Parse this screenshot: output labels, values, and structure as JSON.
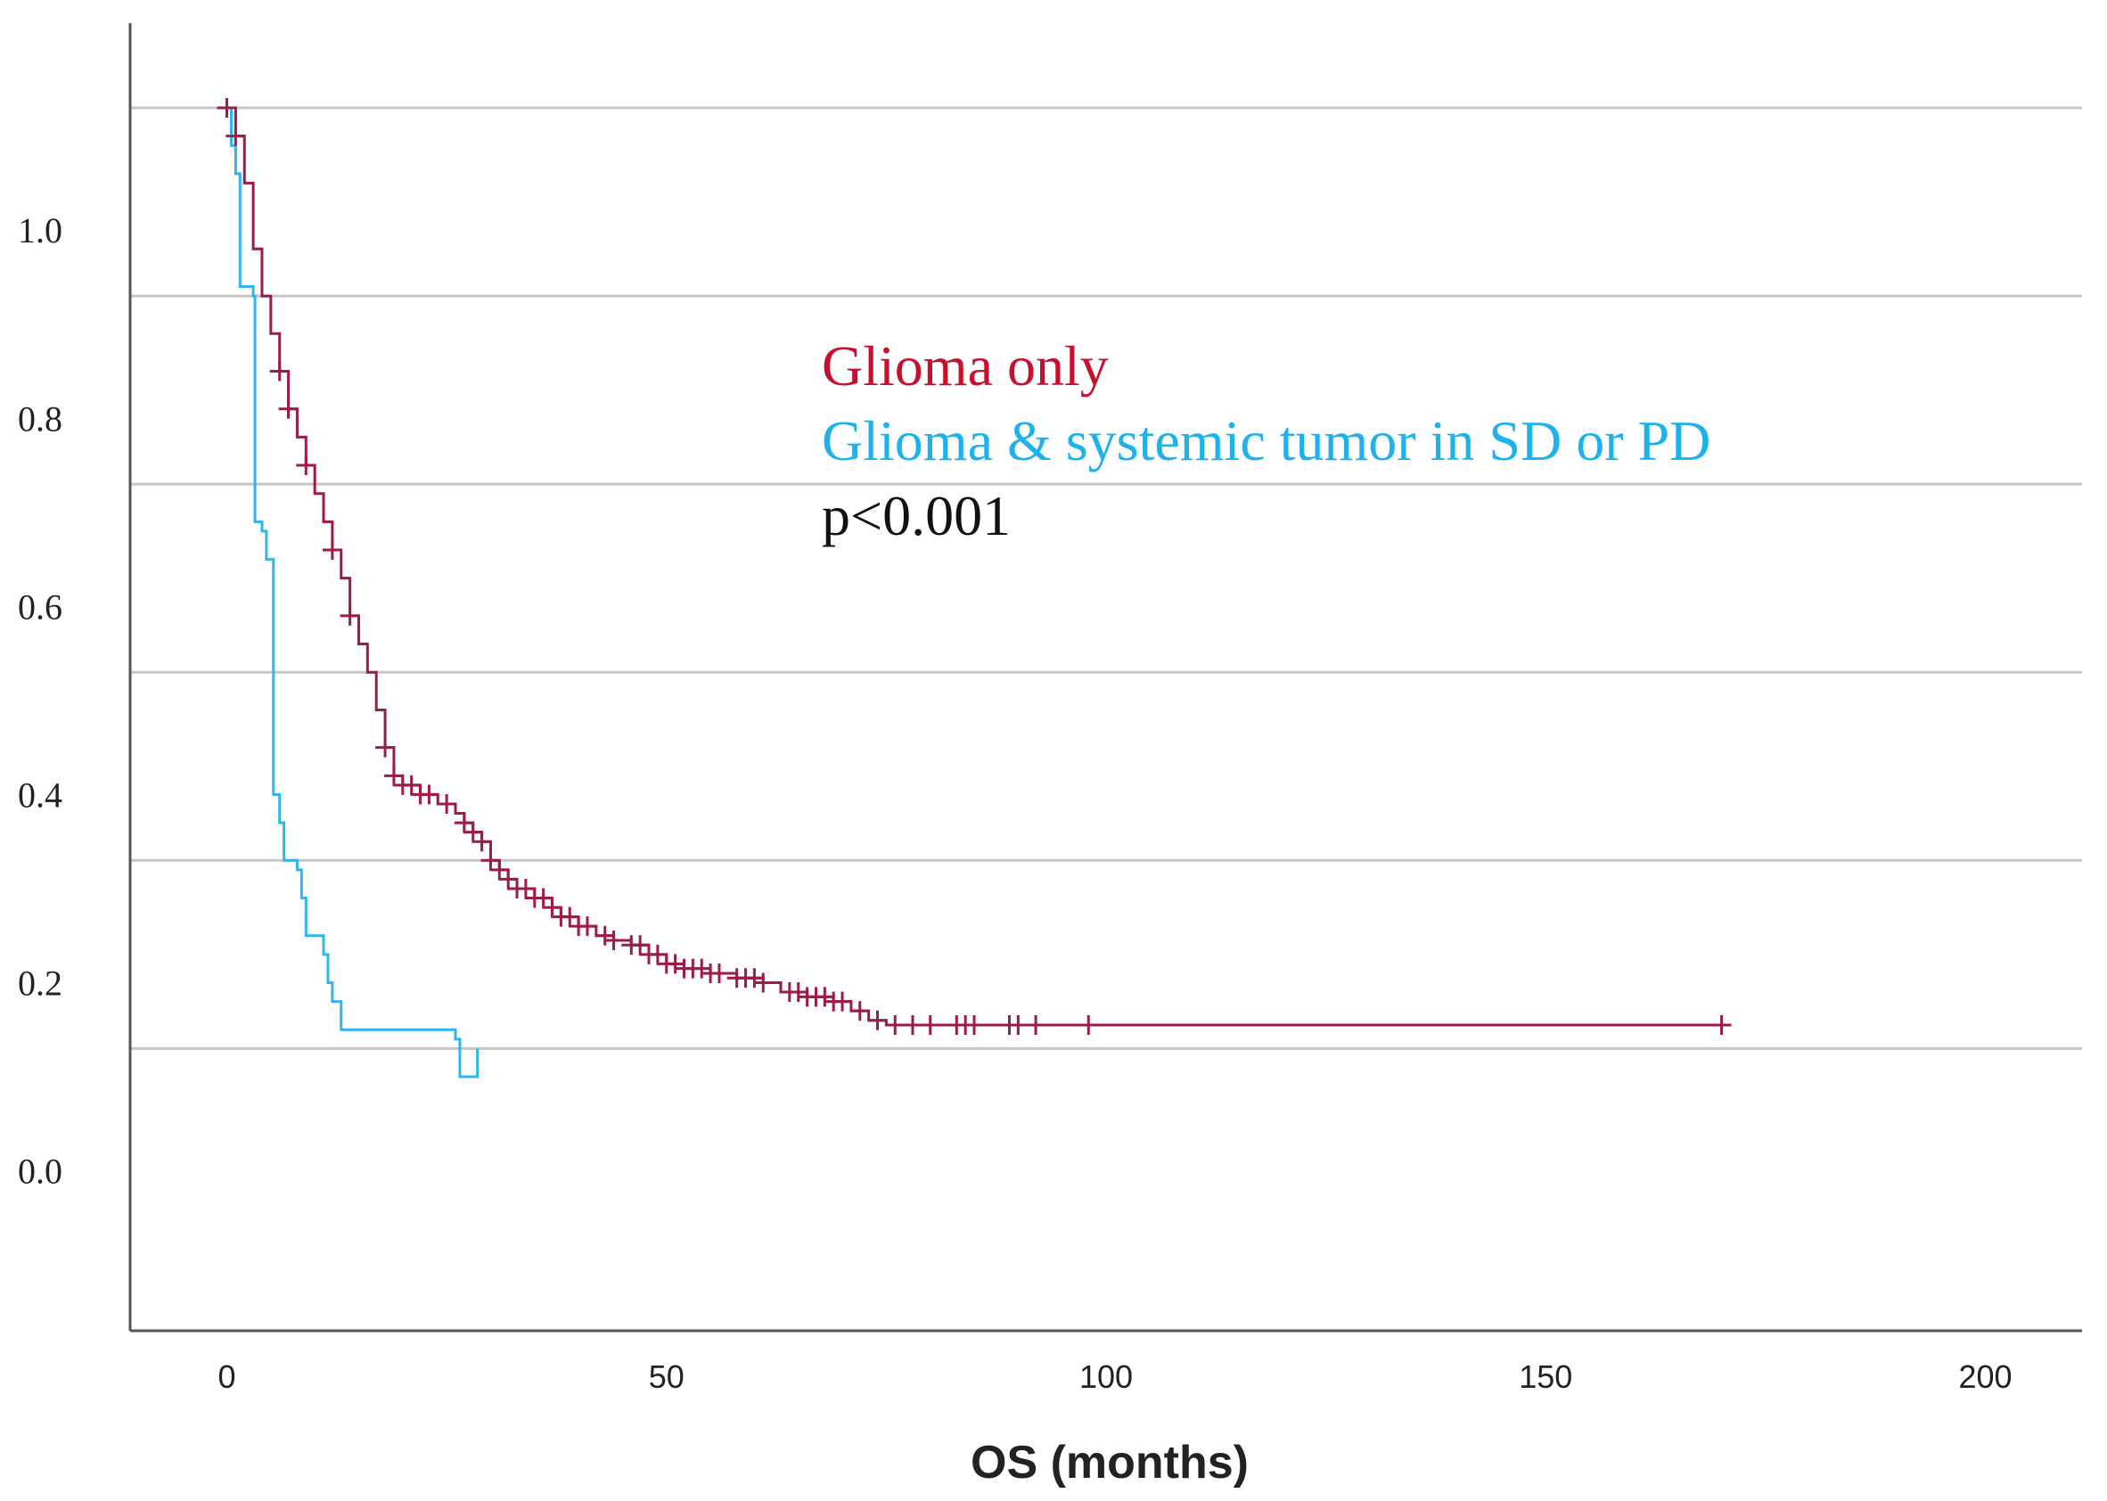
{
  "chart_data": {
    "type": "line",
    "subtype": "kaplan-meier",
    "title": "",
    "xlabel": "OS (months)",
    "ylabel": "",
    "xlim": [
      -11,
      211
    ],
    "ylim": [
      -0.17,
      1.22
    ],
    "x_ticks": [
      0,
      50,
      100,
      150,
      200
    ],
    "y_tick_labels": [
      "1.0",
      "0.8",
      "0.6",
      "0.4",
      "0.2",
      "0.0"
    ],
    "y_tick_values": [
      1.0,
      0.8,
      0.6,
      0.4,
      0.2,
      0.0
    ],
    "gridlines_y": [
      1.13,
      0.93,
      0.73,
      0.53,
      0.33,
      0.13
    ],
    "grid": true,
    "series": [
      {
        "name": "Glioma only",
        "color": "#9e1a4a",
        "steps": [
          [
            0,
            1.13
          ],
          [
            1,
            1.1
          ],
          [
            2,
            1.05
          ],
          [
            3,
            0.98
          ],
          [
            4,
            0.93
          ],
          [
            5,
            0.89
          ],
          [
            6,
            0.85
          ],
          [
            7,
            0.81
          ],
          [
            8,
            0.78
          ],
          [
            9,
            0.75
          ],
          [
            10,
            0.72
          ],
          [
            11,
            0.69
          ],
          [
            12,
            0.66
          ],
          [
            13,
            0.63
          ],
          [
            14,
            0.59
          ],
          [
            15,
            0.56
          ],
          [
            16,
            0.53
          ],
          [
            17,
            0.49
          ],
          [
            18,
            0.45
          ],
          [
            19,
            0.42
          ],
          [
            20,
            0.41
          ],
          [
            22,
            0.4
          ],
          [
            24,
            0.39
          ],
          [
            26,
            0.38
          ],
          [
            27,
            0.37
          ],
          [
            28,
            0.36
          ],
          [
            29,
            0.35
          ],
          [
            30,
            0.33
          ],
          [
            31,
            0.32
          ],
          [
            32,
            0.31
          ],
          [
            33,
            0.3
          ],
          [
            35,
            0.29
          ],
          [
            37,
            0.28
          ],
          [
            38,
            0.27
          ],
          [
            40,
            0.26
          ],
          [
            42,
            0.25
          ],
          [
            44,
            0.245
          ],
          [
            46,
            0.24
          ],
          [
            48,
            0.23
          ],
          [
            50,
            0.22
          ],
          [
            52,
            0.215
          ],
          [
            55,
            0.21
          ],
          [
            58,
            0.205
          ],
          [
            61,
            0.2
          ],
          [
            63,
            0.19
          ],
          [
            66,
            0.185
          ],
          [
            69,
            0.18
          ],
          [
            71,
            0.17
          ],
          [
            73,
            0.16
          ],
          [
            75,
            0.155
          ],
          [
            100,
            0.155
          ],
          [
            170,
            0.155
          ]
        ],
        "censored": [
          0,
          1,
          6,
          7,
          9,
          12,
          14,
          18,
          19,
          20,
          21,
          22,
          23,
          25,
          27,
          28,
          29,
          30,
          31,
          32,
          33,
          34,
          35,
          36,
          37,
          38,
          39,
          40,
          41,
          43,
          44,
          46,
          47,
          48,
          49,
          50,
          51,
          52,
          53,
          54,
          55,
          56,
          58,
          59,
          60,
          61,
          64,
          65,
          66,
          67,
          68,
          69,
          70,
          72,
          74,
          76,
          78,
          80,
          83,
          84,
          85,
          89,
          90,
          92,
          98,
          170
        ]
      },
      {
        "name": "Glioma & systemic tumor in SD or PD",
        "color": "#2fb5ec",
        "steps": [
          [
            0,
            1.13
          ],
          [
            0.5,
            1.09
          ],
          [
            1,
            1.06
          ],
          [
            1.5,
            0.94
          ],
          [
            3,
            0.93
          ],
          [
            3.2,
            0.69
          ],
          [
            4,
            0.68
          ],
          [
            4.5,
            0.65
          ],
          [
            5.3,
            0.4
          ],
          [
            6,
            0.37
          ],
          [
            6.5,
            0.33
          ],
          [
            8,
            0.32
          ],
          [
            8.5,
            0.29
          ],
          [
            9,
            0.25
          ],
          [
            11,
            0.23
          ],
          [
            11.5,
            0.2
          ],
          [
            12,
            0.18
          ],
          [
            13,
            0.15
          ],
          [
            26,
            0.14
          ],
          [
            26.5,
            0.1
          ],
          [
            28,
            0.1
          ],
          [
            28.5,
            0.13
          ]
        ],
        "end": [
          28.5,
          0.13
        ]
      }
    ],
    "annotations": {
      "legend_1": "Glioma only",
      "legend_2": "Glioma & systemic tumor in SD or PD",
      "p_value": "p<0.001"
    },
    "legend_position": "top-center"
  }
}
